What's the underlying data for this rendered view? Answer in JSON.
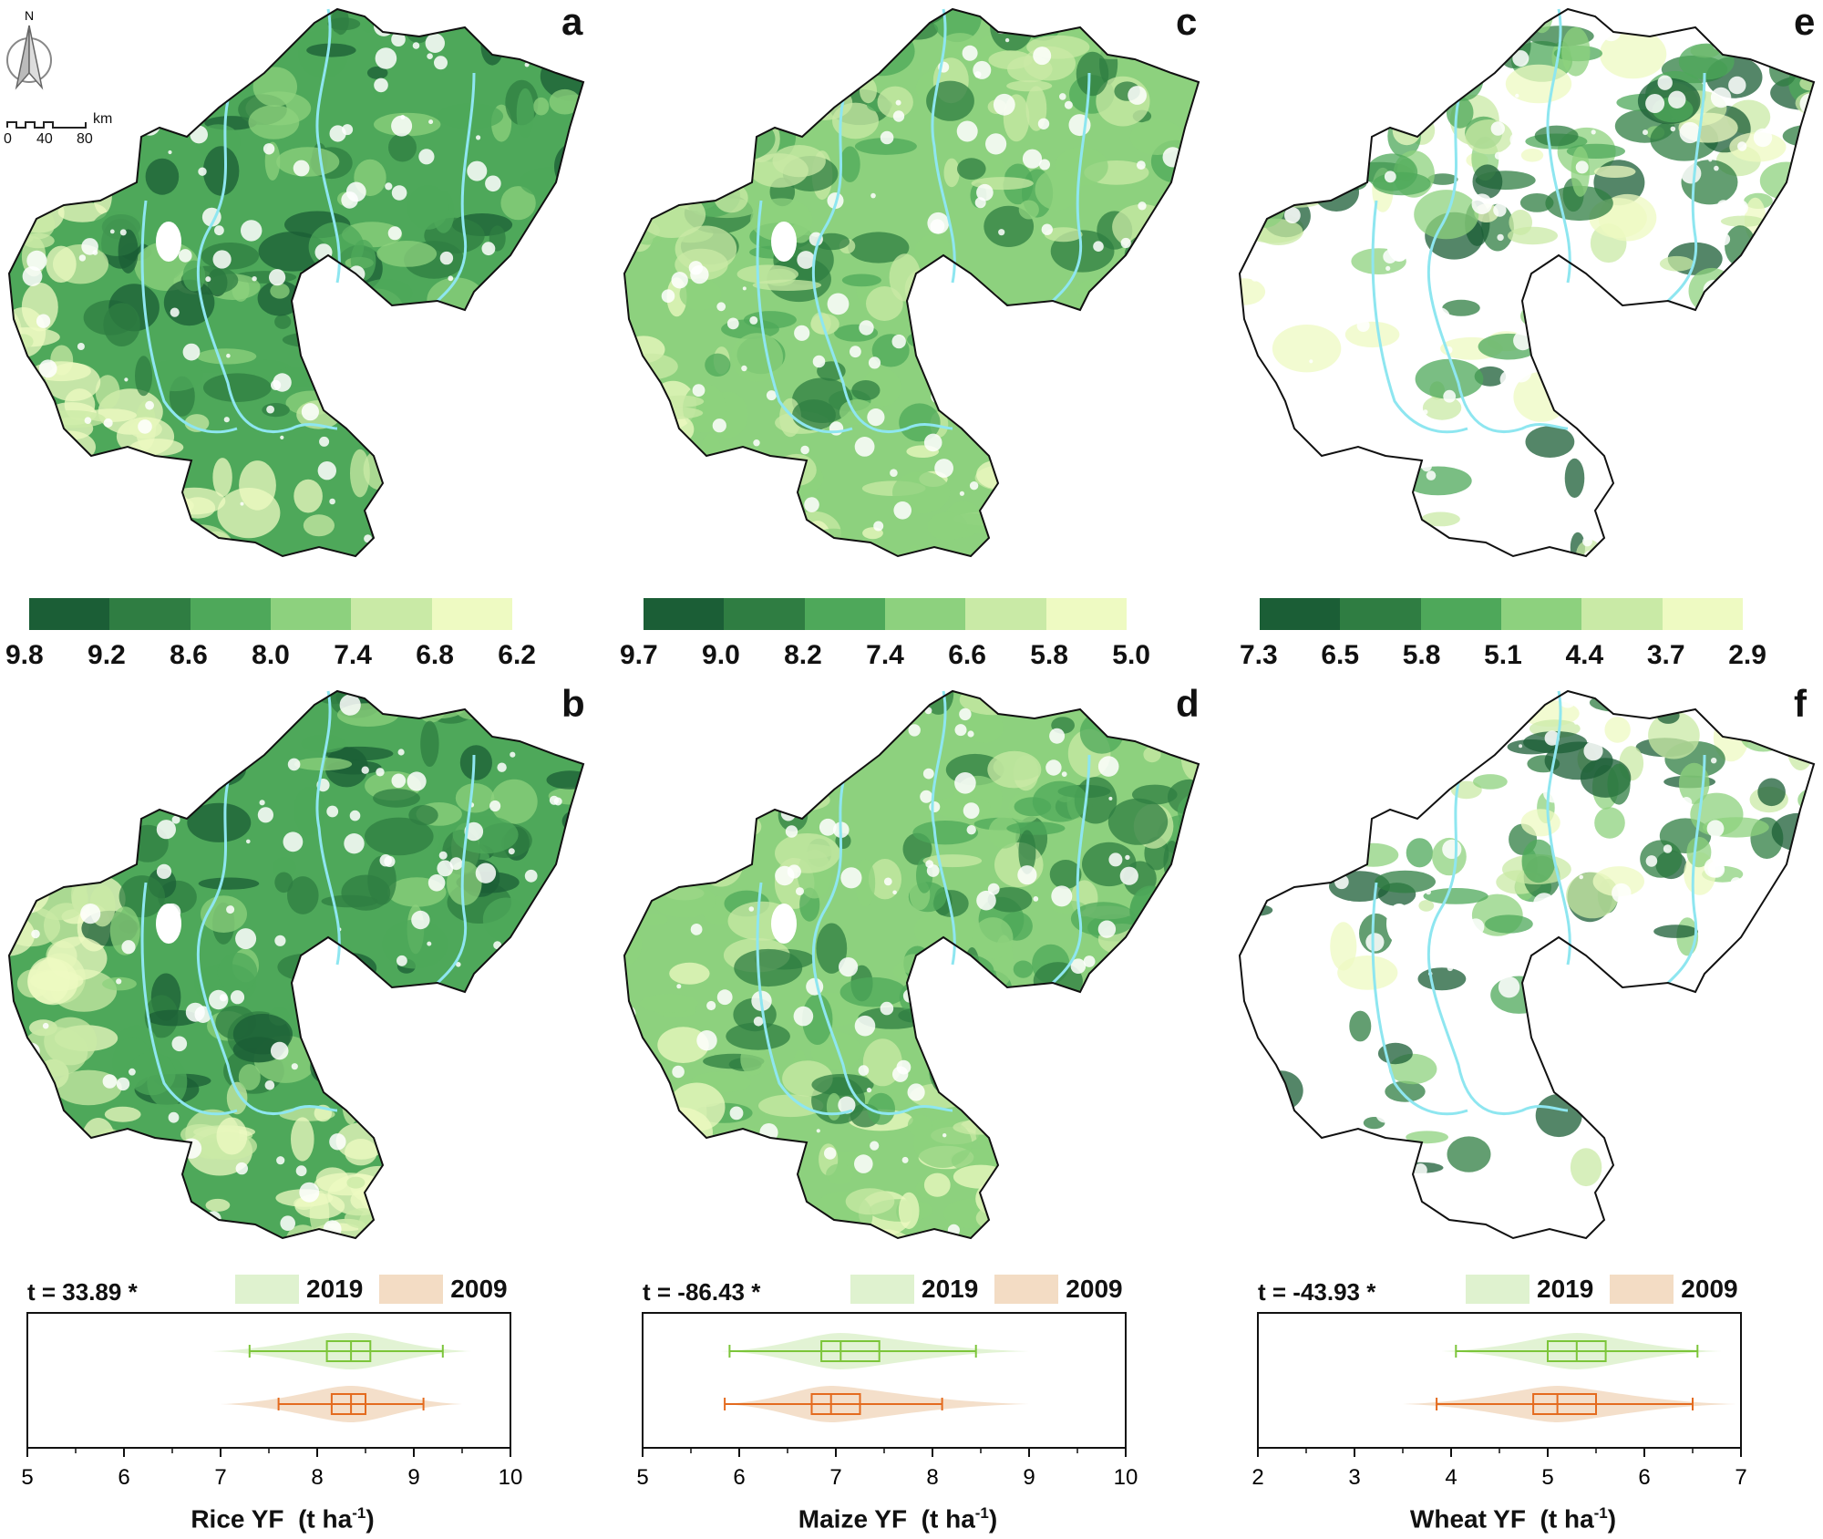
{
  "compass": {
    "north_label": "N"
  },
  "scalebar": {
    "unit": "km",
    "ticks": [
      "0",
      "40",
      "80"
    ]
  },
  "panels": [
    {
      "letter": "a"
    },
    {
      "letter": "b"
    },
    {
      "letter": "c"
    },
    {
      "letter": "d"
    },
    {
      "letter": "e"
    },
    {
      "letter": "f"
    }
  ],
  "colorbars": [
    {
      "ticks": [
        "9.8",
        "9.2",
        "8.6",
        "8.0",
        "7.4",
        "6.8",
        "6.2"
      ]
    },
    {
      "ticks": [
        "9.7",
        "9.0",
        "8.2",
        "7.4",
        "6.6",
        "5.8",
        "5.0"
      ]
    },
    {
      "ticks": [
        "7.3",
        "6.5",
        "5.8",
        "5.1",
        "4.4",
        "3.7",
        "2.9"
      ]
    }
  ],
  "colors": {
    "scale": [
      "#1b5e36",
      "#2f7d42",
      "#4ea85a",
      "#8dd17e",
      "#c9eaa6",
      "#eefac2"
    ],
    "river": "#8ee6f0",
    "outline": "#111111",
    "y2019_line": "#7cc53a",
    "y2019_fill": "#dff2cf",
    "y2009_line": "#e46b1f",
    "y2009_fill": "#f3dcc4"
  },
  "legend": {
    "y2019": "2019",
    "y2009": "2009"
  },
  "chart_data": [
    {
      "type": "box",
      "t_stat": "t = 33.89 *",
      "xlabel_main": "Rice YF",
      "xlabel_unit": "(t ha",
      "xlabel_exp": "-1",
      "xlabel_close": ")",
      "xlim": [
        5,
        10
      ],
      "xticks": [
        "5",
        "6",
        "7",
        "8",
        "9",
        "10"
      ],
      "series": [
        {
          "name": "2019",
          "whisker_low": 7.3,
          "q1": 8.1,
          "median": 8.35,
          "q3": 8.55,
          "whisker_high": 9.3,
          "range": [
            6.9,
            9.6
          ]
        },
        {
          "name": "2009",
          "whisker_low": 7.6,
          "q1": 8.15,
          "median": 8.35,
          "q3": 8.5,
          "whisker_high": 9.1,
          "range": [
            7.0,
            9.5
          ]
        }
      ]
    },
    {
      "type": "box",
      "t_stat": "t = -86.43 *",
      "xlabel_main": "Maize YF",
      "xlabel_unit": "(t ha",
      "xlabel_exp": "-1",
      "xlabel_close": ")",
      "xlim": [
        5,
        10
      ],
      "xticks": [
        "5",
        "6",
        "7",
        "8",
        "9",
        "10"
      ],
      "series": [
        {
          "name": "2019",
          "whisker_low": 5.9,
          "q1": 6.85,
          "median": 7.05,
          "q3": 7.45,
          "whisker_high": 8.45,
          "range": [
            5.8,
            9.0
          ]
        },
        {
          "name": "2009",
          "whisker_low": 5.85,
          "q1": 6.75,
          "median": 6.95,
          "q3": 7.25,
          "whisker_high": 8.1,
          "range": [
            5.8,
            9.0
          ]
        }
      ]
    },
    {
      "type": "box",
      "t_stat": "t = -43.93 *",
      "xlabel_main": "Wheat YF",
      "xlabel_unit": "(t ha",
      "xlabel_exp": "-1",
      "xlabel_close": ")",
      "xlim": [
        2,
        7
      ],
      "xticks": [
        "2",
        "3",
        "4",
        "5",
        "6",
        "7"
      ],
      "series": [
        {
          "name": "2019",
          "whisker_low": 4.05,
          "q1": 5.0,
          "median": 5.3,
          "q3": 5.6,
          "whisker_high": 6.55,
          "range": [
            3.9,
            6.8
          ]
        },
        {
          "name": "2009",
          "whisker_low": 3.85,
          "q1": 4.85,
          "median": 5.1,
          "q3": 5.5,
          "whisker_high": 6.5,
          "range": [
            3.5,
            6.95
          ]
        }
      ]
    }
  ]
}
